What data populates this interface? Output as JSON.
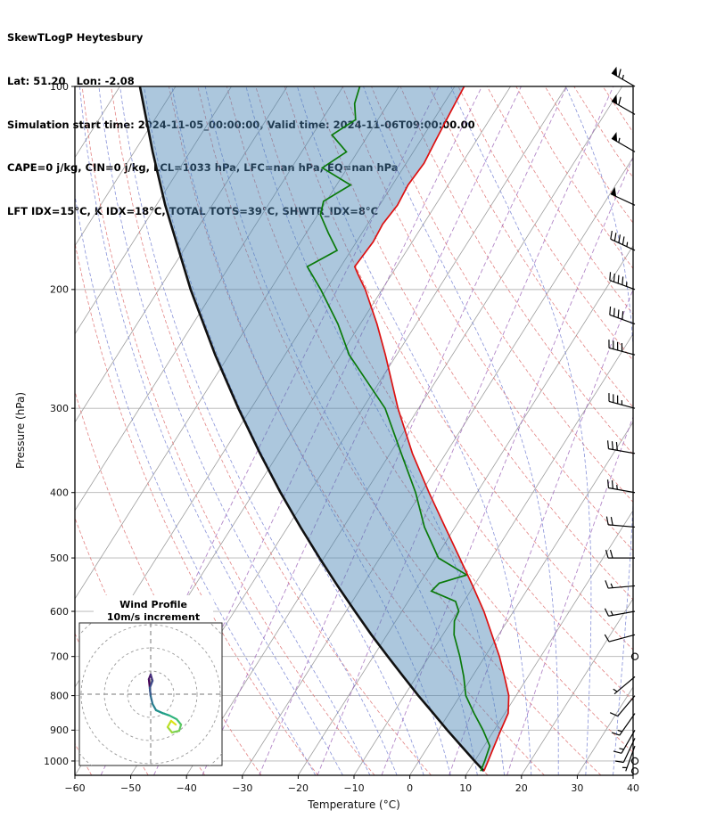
{
  "header": {
    "line1": "SkewTLogP Heytesbury",
    "line2": "Lat: 51.20   Lon: -2.08",
    "line3": "Simulation start time: 2024-11-05_00:00:00, Valid time: 2024-11-06T09:00:00.00",
    "line4": "CAPE=0 j/kg, CIN=0 j/kg, LCL=1033 hPa, LFC=nan hPa, EQ=nan hPa",
    "line5": "LFT IDX=15°C, K IDX=18°C, TOTAL TOTS=39°C, SHWTR_IDX=8°C"
  },
  "chart_data": {
    "type": "line",
    "title": "SkewTLogP Heytesbury",
    "xlabel": "Temperature (°C)",
    "ylabel": "Pressure (hPa)",
    "x_ticks": [
      -60,
      -50,
      -40,
      -30,
      -20,
      -10,
      0,
      10,
      20,
      30,
      40
    ],
    "y_ticks": [
      100,
      200,
      300,
      400,
      500,
      600,
      700,
      800,
      900,
      1000
    ],
    "xlim": [
      -60,
      40
    ],
    "p_top": 100,
    "p_bottom": 1050,
    "grid": true,
    "colors": {
      "temperature": "#dd1111",
      "dewpoint": "#0a7a0a",
      "parcel": "#111111",
      "shade": "#4682b4",
      "isotherm": "#9e9e9e",
      "pressure_grid": "#b3b3b3",
      "dry_adiabat": "#de6e6e",
      "moist_adiabat": "#6a77d0",
      "mixing_ratio": "#9a5fb5",
      "barbs": "#000000"
    },
    "series": [
      {
        "name": "temperature",
        "points": [
          [
            1035,
            12.8
          ],
          [
            1000,
            12.4
          ],
          [
            950,
            11.8
          ],
          [
            900,
            11.2
          ],
          [
            850,
            10.6
          ],
          [
            800,
            8.7
          ],
          [
            750,
            5.8
          ],
          [
            700,
            2.6
          ],
          [
            650,
            -1.2
          ],
          [
            600,
            -5.3
          ],
          [
            550,
            -10.2
          ],
          [
            500,
            -15.7
          ],
          [
            450,
            -21.8
          ],
          [
            400,
            -28.6
          ],
          [
            350,
            -36.0
          ],
          [
            300,
            -43.7
          ],
          [
            250,
            -52.0
          ],
          [
            225,
            -57.0
          ],
          [
            200,
            -63.0
          ],
          [
            190,
            -66.0
          ],
          [
            185,
            -67.5
          ],
          [
            170,
            -67.0
          ],
          [
            160,
            -67.3
          ],
          [
            150,
            -66.8
          ],
          [
            140,
            -67.2
          ],
          [
            130,
            -66.8
          ],
          [
            120,
            -67.3
          ],
          [
            110,
            -67.8
          ],
          [
            100,
            -68.3
          ]
        ]
      },
      {
        "name": "dewpoint",
        "points": [
          [
            1035,
            12.2
          ],
          [
            1000,
            11.8
          ],
          [
            950,
            11.0
          ],
          [
            900,
            8.0
          ],
          [
            850,
            4.5
          ],
          [
            800,
            1.0
          ],
          [
            750,
            -1.5
          ],
          [
            700,
            -4.5
          ],
          [
            650,
            -8.0
          ],
          [
            620,
            -9.5
          ],
          [
            600,
            -9.8
          ],
          [
            580,
            -11.5
          ],
          [
            560,
            -17.0
          ],
          [
            545,
            -16.5
          ],
          [
            530,
            -12.5
          ],
          [
            500,
            -19.5
          ],
          [
            450,
            -25.5
          ],
          [
            400,
            -31.0
          ],
          [
            350,
            -38.0
          ],
          [
            300,
            -46.0
          ],
          [
            250,
            -58.5
          ],
          [
            225,
            -64.0
          ],
          [
            200,
            -71.0
          ],
          [
            185,
            -76.0
          ],
          [
            175,
            -72.5
          ],
          [
            165,
            -76.0
          ],
          [
            155,
            -79.5
          ],
          [
            148,
            -80.5
          ],
          [
            140,
            -77.5
          ],
          [
            132,
            -84.5
          ],
          [
            125,
            -82.0
          ],
          [
            118,
            -86.5
          ],
          [
            112,
            -84.0
          ],
          [
            106,
            -86.0
          ],
          [
            100,
            -87.0
          ]
        ]
      },
      {
        "name": "parcel",
        "points": [
          [
            1035,
            12.8
          ],
          [
            1000,
            10.0
          ],
          [
            950,
            5.9
          ],
          [
            900,
            1.6
          ],
          [
            850,
            -2.8
          ],
          [
            800,
            -7.5
          ],
          [
            750,
            -12.3
          ],
          [
            700,
            -17.4
          ],
          [
            650,
            -22.8
          ],
          [
            600,
            -28.4
          ],
          [
            550,
            -34.4
          ],
          [
            500,
            -40.8
          ],
          [
            450,
            -47.7
          ],
          [
            400,
            -55.2
          ],
          [
            350,
            -63.3
          ],
          [
            300,
            -72.3
          ],
          [
            250,
            -82.5
          ],
          [
            200,
            -94.3
          ],
          [
            150,
            -108.4
          ],
          [
            125,
            -116.7
          ],
          [
            100,
            -126.4
          ]
        ]
      }
    ],
    "shaded_region": {
      "between": [
        "parcel",
        "temperature"
      ],
      "opacity": 0.45
    },
    "background_lines": {
      "isotherms_c": {
        "start": -130,
        "end": 40,
        "step": 10
      },
      "dry_adiabats_c": {
        "start": -60,
        "end": 170,
        "step": 10
      },
      "moist_adiabats_c": {
        "start": -20,
        "end": 40,
        "step": 5
      },
      "mixing_ratio_g_kg": [
        0.02,
        0.06,
        0.15,
        0.4,
        1,
        2.5,
        6,
        12
      ]
    },
    "wind_barbs": [
      {
        "p": 100,
        "kt": 65,
        "dir": 300
      },
      {
        "p": 110,
        "kt": 60,
        "dir": 300
      },
      {
        "p": 125,
        "kt": 55,
        "dir": 300
      },
      {
        "p": 150,
        "kt": 50,
        "dir": 295
      },
      {
        "p": 175,
        "kt": 45,
        "dir": 295
      },
      {
        "p": 200,
        "kt": 45,
        "dir": 290
      },
      {
        "p": 225,
        "kt": 40,
        "dir": 290
      },
      {
        "p": 250,
        "kt": 40,
        "dir": 285
      },
      {
        "p": 300,
        "kt": 35,
        "dir": 285
      },
      {
        "p": 350,
        "kt": 30,
        "dir": 280
      },
      {
        "p": 400,
        "kt": 25,
        "dir": 280
      },
      {
        "p": 450,
        "kt": 20,
        "dir": 275
      },
      {
        "p": 500,
        "kt": 20,
        "dir": 270
      },
      {
        "p": 550,
        "kt": 15,
        "dir": 265
      },
      {
        "p": 600,
        "kt": 15,
        "dir": 260
      },
      {
        "p": 650,
        "kt": 10,
        "dir": 255
      },
      {
        "p": 700,
        "kt": 0,
        "dir": 0
      },
      {
        "p": 750,
        "kt": 5,
        "dir": 230
      },
      {
        "p": 800,
        "kt": 10,
        "dir": 220
      },
      {
        "p": 850,
        "kt": 15,
        "dir": 215
      },
      {
        "p": 900,
        "kt": 15,
        "dir": 210
      },
      {
        "p": 925,
        "kt": 10,
        "dir": 205
      },
      {
        "p": 950,
        "kt": 5,
        "dir": 200
      },
      {
        "p": 1000,
        "kt": 0,
        "dir": 0
      },
      {
        "p": 1035,
        "kt": 0,
        "dir": 0
      }
    ],
    "hodograph": {
      "title1": "Wind Profile",
      "title2": "10m/s increment",
      "ring_interval_ms": 10,
      "rings_ms": [
        10,
        20,
        30,
        40
      ],
      "trace_uv": [
        [
          0,
          -0.8
        ],
        [
          -0.8,
          6.5
        ],
        [
          0,
          8.5
        ],
        [
          0.8,
          5.8
        ],
        [
          -0.4,
          2.7
        ],
        [
          0,
          -0.8
        ],
        [
          0.8,
          -4.2
        ],
        [
          2.3,
          -6.9
        ],
        [
          5,
          -8.1
        ],
        [
          8.1,
          -9.2
        ],
        [
          11.2,
          -10.8
        ],
        [
          13.1,
          -13.1
        ],
        [
          12.3,
          -15.8
        ],
        [
          9.2,
          -16.5
        ],
        [
          7.3,
          -14.2
        ],
        [
          8.8,
          -11.5
        ],
        [
          10.8,
          -13.1
        ]
      ],
      "trace_colors": [
        "#440154",
        "#471365",
        "#46327e",
        "#3f4c8a",
        "#365c8d",
        "#2e6d8e",
        "#277f8e",
        "#21908c",
        "#1fa187",
        "#2db27d",
        "#44bf70",
        "#5ec962",
        "#7ad151",
        "#9bd93c",
        "#bddf26",
        "#dfe318",
        "#fde725"
      ]
    }
  }
}
